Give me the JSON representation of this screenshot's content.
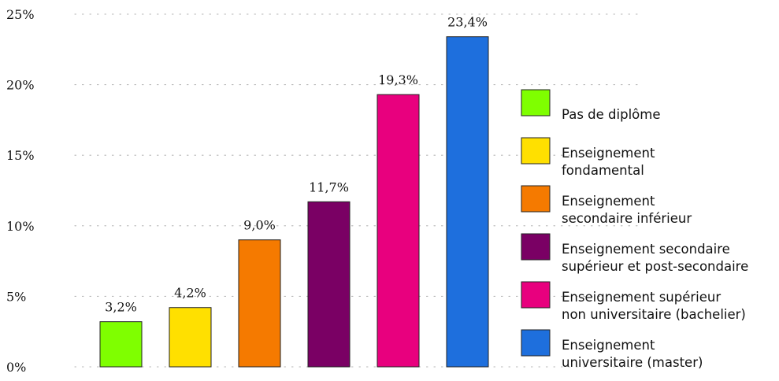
{
  "chart_data": {
    "type": "bar",
    "title": "",
    "xlabel": "",
    "ylabel": "",
    "ylim": [
      0,
      25
    ],
    "yticks": [
      0,
      5,
      10,
      15,
      20,
      25
    ],
    "ytick_labels": [
      "0%",
      "5%",
      "10%",
      "15%",
      "20%",
      "25%"
    ],
    "grid": "horizontal dotted",
    "legend_position": "right",
    "categories": [
      "Pas de diplôme",
      "Enseignement fondamental",
      "Enseignement secondaire inférieur",
      "Enseignement secondaire supérieur et post-secondaire",
      "Enseignement supérieur non universitaire (bachelier)",
      "Enseignement universitaire (master)"
    ],
    "values": [
      3.2,
      4.2,
      9.0,
      11.7,
      19.3,
      23.4
    ],
    "value_labels": [
      "3,2%",
      "4,2%",
      "9,0%",
      "11,7%",
      "19,3%",
      "23,4%"
    ],
    "colors": [
      "#7fff00",
      "#ffe000",
      "#f57a00",
      "#7a0064",
      "#e8007e",
      "#1e6fdd"
    ],
    "legend": [
      {
        "lines": [
          "Pas de diplôme"
        ]
      },
      {
        "lines": [
          "Enseignement",
          "fondamental"
        ]
      },
      {
        "lines": [
          "Enseignement",
          "secondaire inférieur"
        ]
      },
      {
        "lines": [
          "Enseignement secondaire",
          "supérieur et post-secondaire"
        ]
      },
      {
        "lines": [
          "Enseignement supérieur",
          "non universitaire (bachelier)"
        ]
      },
      {
        "lines": [
          "Enseignement",
          "universitaire (master)"
        ]
      }
    ]
  }
}
